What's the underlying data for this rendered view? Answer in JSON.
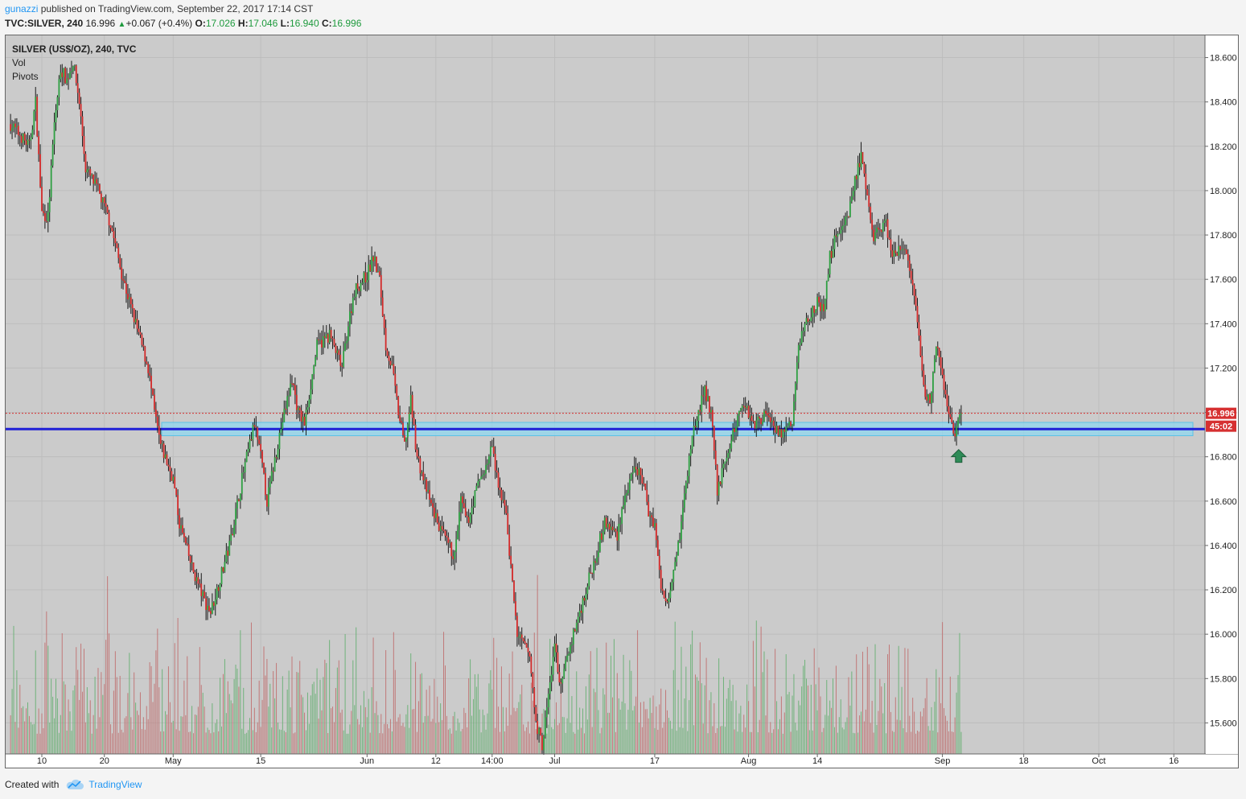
{
  "header": {
    "user": "gunazzi",
    "published": "published on TradingView.com, September 22, 2017 17:14 CST",
    "symbol": "TVC:SILVER, 240",
    "last": "16.996",
    "change": "+0.067 (+0.4%)",
    "o_label": "O:",
    "o": "17.026",
    "h_label": "H:",
    "h": "17.046",
    "l_label": "L:",
    "l": "16.940",
    "c_label": "C:",
    "c": "16.996",
    "arrow": "▲"
  },
  "legend": {
    "title": "SILVER (US$/OZ), 240, TVC",
    "vol": "Vol",
    "pivots": "Pivots"
  },
  "footer": {
    "created_with": "Created with",
    "brand": "TradingView"
  },
  "colors": {
    "plot_bg": "#cbcbcb",
    "up": "#2ea042",
    "down": "#d32a2a",
    "support_line": "#1f1fd6",
    "zone_fill": "#8fd8f0",
    "price_label": "#d63031"
  },
  "chart_data": {
    "type": "candlestick",
    "timeframe": "240",
    "ylim": [
      15.46,
      18.7
    ],
    "yticks": [
      "18.600",
      "18.400",
      "18.200",
      "18.000",
      "17.800",
      "17.600",
      "17.400",
      "17.200",
      "17.000",
      "16.800",
      "16.600",
      "16.400",
      "16.200",
      "16.000",
      "15.800",
      "15.600"
    ],
    "xticks": [
      {
        "label": "10",
        "day": 0
      },
      {
        "label": "20",
        "day": 10
      },
      {
        "label": "May",
        "day": 21
      },
      {
        "label": "15",
        "day": 35
      },
      {
        "label": "Jun",
        "day": 52
      },
      {
        "label": "12",
        "day": 63
      },
      {
        "label": "14:00",
        "day": 72
      },
      {
        "label": "Jul",
        "day": 82
      },
      {
        "label": "17",
        "day": 98
      },
      {
        "label": "Aug",
        "day": 113
      },
      {
        "label": "14",
        "day": 124
      },
      {
        "label": "Sep",
        "day": 144
      },
      {
        "label": "18",
        "day": 157
      },
      {
        "label": "Oct",
        "day": 169
      },
      {
        "label": "16",
        "day": 181
      }
    ],
    "price_path": [
      {
        "day": -5,
        "price": 18.3
      },
      {
        "day": -2,
        "price": 18.2
      },
      {
        "day": -1,
        "price": 18.4
      },
      {
        "day": 0,
        "price": 17.9
      },
      {
        "day": 1,
        "price": 17.88
      },
      {
        "day": 2,
        "price": 18.3
      },
      {
        "day": 3,
        "price": 18.55
      },
      {
        "day": 4,
        "price": 18.5
      },
      {
        "day": 5,
        "price": 18.58
      },
      {
        "day": 6,
        "price": 18.4
      },
      {
        "day": 7,
        "price": 18.1
      },
      {
        "day": 9,
        "price": 18.0
      },
      {
        "day": 11,
        "price": 17.85
      },
      {
        "day": 13,
        "price": 17.6
      },
      {
        "day": 15,
        "price": 17.4
      },
      {
        "day": 17,
        "price": 17.2
      },
      {
        "day": 18,
        "price": 17.0
      },
      {
        "day": 19,
        "price": 16.85
      },
      {
        "day": 21,
        "price": 16.7
      },
      {
        "day": 22,
        "price": 16.5
      },
      {
        "day": 24,
        "price": 16.3
      },
      {
        "day": 26,
        "price": 16.15
      },
      {
        "day": 27,
        "price": 16.1
      },
      {
        "day": 28,
        "price": 16.2
      },
      {
        "day": 30,
        "price": 16.4
      },
      {
        "day": 32,
        "price": 16.7
      },
      {
        "day": 34,
        "price": 16.95
      },
      {
        "day": 35,
        "price": 16.8
      },
      {
        "day": 36,
        "price": 16.6
      },
      {
        "day": 38,
        "price": 16.9
      },
      {
        "day": 40,
        "price": 17.15
      },
      {
        "day": 41,
        "price": 17.0
      },
      {
        "day": 42,
        "price": 16.95
      },
      {
        "day": 44,
        "price": 17.3
      },
      {
        "day": 46,
        "price": 17.35
      },
      {
        "day": 48,
        "price": 17.2
      },
      {
        "day": 49,
        "price": 17.4
      },
      {
        "day": 50,
        "price": 17.55
      },
      {
        "day": 52,
        "price": 17.62
      },
      {
        "day": 53,
        "price": 17.7
      },
      {
        "day": 54,
        "price": 17.6
      },
      {
        "day": 55,
        "price": 17.3
      },
      {
        "day": 56,
        "price": 17.2
      },
      {
        "day": 57,
        "price": 17.0
      },
      {
        "day": 58,
        "price": 16.85
      },
      {
        "day": 59,
        "price": 17.05
      },
      {
        "day": 60,
        "price": 16.8
      },
      {
        "day": 62,
        "price": 16.6
      },
      {
        "day": 64,
        "price": 16.45
      },
      {
        "day": 66,
        "price": 16.35
      },
      {
        "day": 67,
        "price": 16.6
      },
      {
        "day": 68,
        "price": 16.5
      },
      {
        "day": 70,
        "price": 16.7
      },
      {
        "day": 71,
        "price": 16.75
      },
      {
        "day": 72,
        "price": 16.85
      },
      {
        "day": 73,
        "price": 16.65
      },
      {
        "day": 74,
        "price": 16.6
      },
      {
        "day": 75,
        "price": 16.3
      },
      {
        "day": 76,
        "price": 16.0
      },
      {
        "day": 78,
        "price": 15.9
      },
      {
        "day": 79,
        "price": 15.6
      },
      {
        "day": 80,
        "price": 15.5
      },
      {
        "day": 81,
        "price": 15.72
      },
      {
        "day": 82,
        "price": 15.95
      },
      {
        "day": 83,
        "price": 15.75
      },
      {
        "day": 84,
        "price": 15.9
      },
      {
        "day": 86,
        "price": 16.1
      },
      {
        "day": 88,
        "price": 16.3
      },
      {
        "day": 90,
        "price": 16.5
      },
      {
        "day": 92,
        "price": 16.45
      },
      {
        "day": 93,
        "price": 16.6
      },
      {
        "day": 95,
        "price": 16.75
      },
      {
        "day": 96,
        "price": 16.7
      },
      {
        "day": 97,
        "price": 16.55
      },
      {
        "day": 98,
        "price": 16.5
      },
      {
        "day": 99,
        "price": 16.2
      },
      {
        "day": 100,
        "price": 16.15
      },
      {
        "day": 102,
        "price": 16.45
      },
      {
        "day": 104,
        "price": 16.9
      },
      {
        "day": 106,
        "price": 17.1
      },
      {
        "day": 107,
        "price": 17.0
      },
      {
        "day": 108,
        "price": 16.65
      },
      {
        "day": 110,
        "price": 16.85
      },
      {
        "day": 112,
        "price": 17.05
      },
      {
        "day": 114,
        "price": 16.95
      },
      {
        "day": 116,
        "price": 17.0
      },
      {
        "day": 118,
        "price": 16.9
      },
      {
        "day": 120,
        "price": 16.95
      },
      {
        "day": 121,
        "price": 17.3
      },
      {
        "day": 122,
        "price": 17.4
      },
      {
        "day": 124,
        "price": 17.5
      },
      {
        "day": 125,
        "price": 17.45
      },
      {
        "day": 126,
        "price": 17.7
      },
      {
        "day": 127,
        "price": 17.8
      },
      {
        "day": 129,
        "price": 17.9
      },
      {
        "day": 130,
        "price": 18.05
      },
      {
        "day": 131,
        "price": 18.15
      },
      {
        "day": 132,
        "price": 17.95
      },
      {
        "day": 133,
        "price": 17.8
      },
      {
        "day": 135,
        "price": 17.85
      },
      {
        "day": 136,
        "price": 17.7
      },
      {
        "day": 138,
        "price": 17.75
      },
      {
        "day": 139,
        "price": 17.6
      },
      {
        "day": 140,
        "price": 17.4
      },
      {
        "day": 141,
        "price": 17.1
      },
      {
        "day": 142,
        "price": 17.05
      },
      {
        "day": 143,
        "price": 17.3
      },
      {
        "day": 144,
        "price": 17.15
      },
      {
        "day": 145,
        "price": 17.0
      },
      {
        "day": 146,
        "price": 16.9
      },
      {
        "day": 147,
        "price": 16.996
      }
    ],
    "last_price": "16.996",
    "countdown": "45:02",
    "support_level": 16.925,
    "zone": [
      16.895,
      16.955
    ]
  }
}
